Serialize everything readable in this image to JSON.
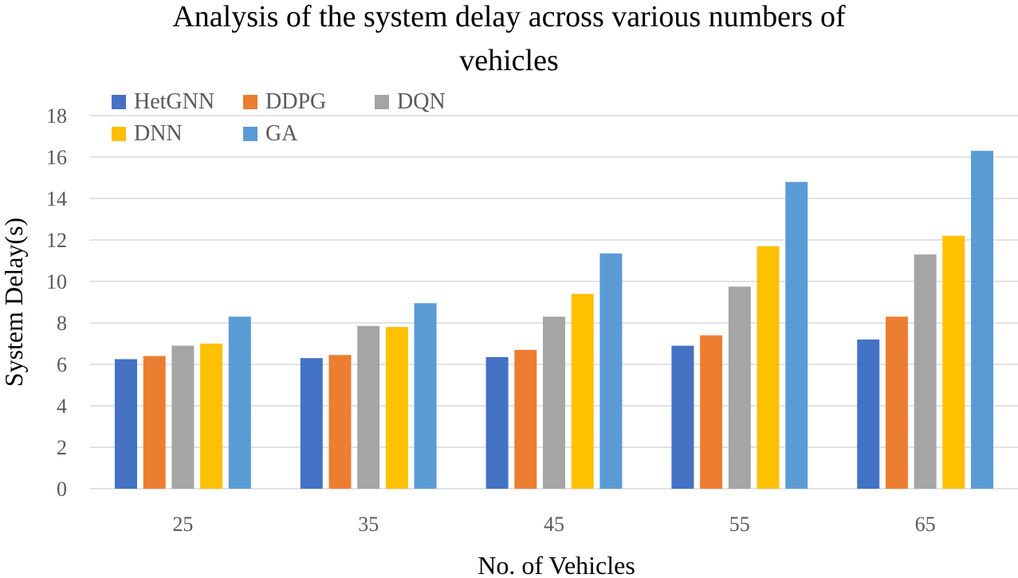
{
  "chart_data": {
    "type": "bar",
    "title_lines": [
      "Analysis of the system delay across various numbers of",
      "vehicles"
    ],
    "xlabel": "No. of Vehicles",
    "ylabel": "System Delay(s)",
    "ylim": [
      0,
      18
    ],
    "yticks": [
      0,
      2,
      4,
      6,
      8,
      10,
      12,
      14,
      16,
      18
    ],
    "grid": true,
    "legend_position": "top-left",
    "categories": [
      "25",
      "35",
      "45",
      "55",
      "65"
    ],
    "series": [
      {
        "name": "HetGNN",
        "color": "#4472C4",
        "values": [
          6.25,
          6.3,
          6.35,
          6.9,
          7.2
        ]
      },
      {
        "name": "DDPG",
        "color": "#ED7D31",
        "values": [
          6.4,
          6.45,
          6.7,
          7.4,
          8.3
        ]
      },
      {
        "name": "DQN",
        "color": "#A5A5A5",
        "values": [
          6.9,
          7.85,
          8.3,
          9.75,
          11.3
        ]
      },
      {
        "name": "DNN",
        "color": "#FFC000",
        "values": [
          7.0,
          7.8,
          9.4,
          11.7,
          12.2
        ]
      },
      {
        "name": "GA",
        "color": "#5B9BD5",
        "values": [
          8.3,
          8.95,
          11.35,
          14.8,
          16.3
        ]
      }
    ]
  }
}
